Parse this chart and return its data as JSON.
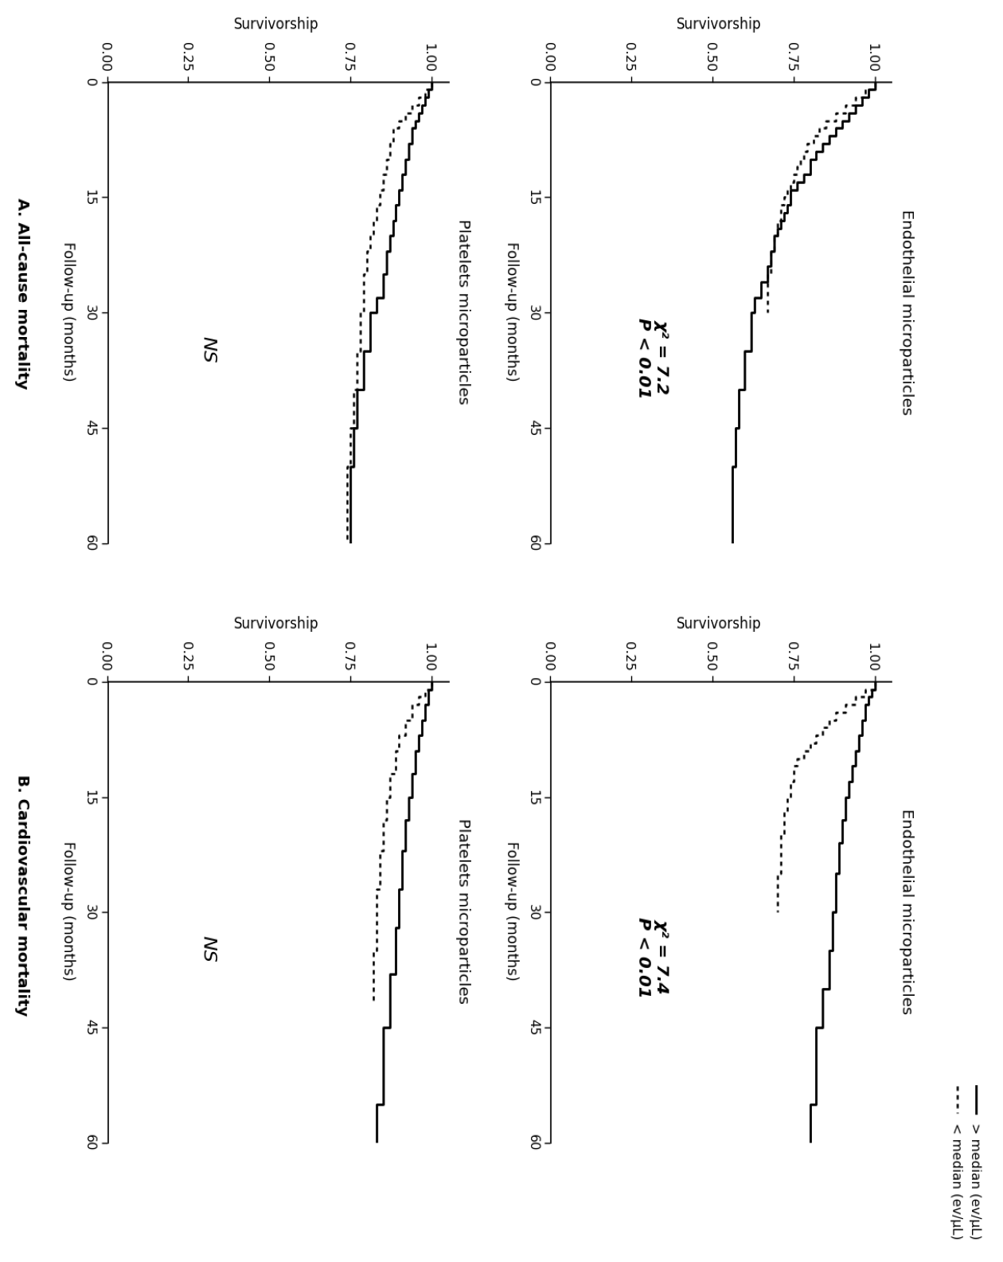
{
  "fig_width": 12.4,
  "fig_height": 15.64,
  "background_color": "#ffffff",
  "panel_A_label": "A. All-cause mortality",
  "panel_B_label": "B. Cardiovascular mortality",
  "ylabel": "Survivorship",
  "xlabel": "Follow-up (months)",
  "legend_solid": "> median (ev/μL)",
  "legend_dotted": "< median (ev/μL)",
  "subplots": [
    {
      "title": "Endothelial microparticles",
      "annotation": "χ² = 7.2\nP < 0.01",
      "annotation_bold": true,
      "xlim": [
        0,
        60
      ],
      "ylim": [
        0.0,
        1.05
      ],
      "xticks": [
        0,
        15,
        30,
        45,
        60
      ],
      "yticks": [
        0.0,
        0.25,
        0.5,
        0.75,
        1.0
      ],
      "solid_x": [
        0,
        1,
        1,
        2,
        2,
        3,
        3,
        4,
        4,
        5,
        5,
        6,
        6,
        7,
        7,
        8,
        8,
        9,
        9,
        10,
        10,
        12,
        12,
        13,
        13,
        14,
        14,
        16,
        16,
        17,
        17,
        18,
        18,
        19,
        19,
        20,
        20,
        22,
        22,
        24,
        24,
        26,
        26,
        28,
        28,
        30,
        30,
        35,
        35,
        40,
        40,
        45,
        45,
        50,
        50,
        60
      ],
      "solid_y": [
        1.0,
        1.0,
        0.98,
        0.98,
        0.96,
        0.96,
        0.94,
        0.94,
        0.92,
        0.92,
        0.9,
        0.9,
        0.88,
        0.88,
        0.86,
        0.86,
        0.84,
        0.84,
        0.82,
        0.82,
        0.8,
        0.8,
        0.78,
        0.78,
        0.76,
        0.76,
        0.74,
        0.74,
        0.73,
        0.73,
        0.72,
        0.72,
        0.71,
        0.71,
        0.7,
        0.7,
        0.69,
        0.69,
        0.68,
        0.68,
        0.67,
        0.67,
        0.65,
        0.65,
        0.63,
        0.63,
        0.62,
        0.62,
        0.6,
        0.6,
        0.58,
        0.58,
        0.57,
        0.57,
        0.56,
        0.56
      ],
      "dotted_x": [
        0,
        1,
        1,
        2,
        2,
        3,
        3,
        4,
        4,
        5,
        5,
        6,
        6,
        7,
        7,
        8,
        8,
        9,
        9,
        10,
        10,
        11,
        11,
        12,
        12,
        13,
        13,
        14,
        14,
        15,
        15,
        16,
        16,
        18,
        18,
        20,
        20,
        22,
        22,
        25,
        25,
        30
      ],
      "dotted_y": [
        1.0,
        1.0,
        0.97,
        0.97,
        0.94,
        0.94,
        0.91,
        0.91,
        0.88,
        0.88,
        0.85,
        0.85,
        0.83,
        0.83,
        0.81,
        0.81,
        0.79,
        0.79,
        0.78,
        0.78,
        0.77,
        0.77,
        0.76,
        0.76,
        0.75,
        0.75,
        0.74,
        0.74,
        0.73,
        0.73,
        0.72,
        0.72,
        0.71,
        0.71,
        0.7,
        0.7,
        0.69,
        0.69,
        0.68,
        0.68,
        0.67,
        0.67
      ]
    },
    {
      "title": "Platelets microparticles",
      "annotation": "NS",
      "annotation_bold": false,
      "xlim": [
        0,
        60
      ],
      "ylim": [
        0.0,
        1.05
      ],
      "xticks": [
        0,
        15,
        30,
        45,
        60
      ],
      "yticks": [
        0.0,
        0.25,
        0.5,
        0.75,
        1.0
      ],
      "solid_x": [
        0,
        1,
        1,
        2,
        2,
        3,
        3,
        4,
        4,
        5,
        5,
        6,
        6,
        8,
        8,
        10,
        10,
        12,
        12,
        14,
        14,
        16,
        16,
        18,
        18,
        20,
        20,
        22,
        22,
        25,
        25,
        28,
        28,
        30,
        30,
        35,
        35,
        40,
        40,
        45,
        45,
        50,
        50,
        60
      ],
      "solid_y": [
        1.0,
        1.0,
        0.99,
        0.99,
        0.98,
        0.98,
        0.97,
        0.97,
        0.96,
        0.96,
        0.95,
        0.95,
        0.94,
        0.94,
        0.93,
        0.93,
        0.92,
        0.92,
        0.91,
        0.91,
        0.9,
        0.9,
        0.89,
        0.89,
        0.88,
        0.88,
        0.87,
        0.87,
        0.86,
        0.86,
        0.85,
        0.85,
        0.83,
        0.83,
        0.81,
        0.81,
        0.79,
        0.79,
        0.77,
        0.77,
        0.76,
        0.76,
        0.75,
        0.75
      ],
      "dotted_x": [
        0,
        1,
        1,
        2,
        2,
        3,
        3,
        4,
        4,
        5,
        5,
        6,
        6,
        8,
        8,
        10,
        10,
        12,
        12,
        14,
        14,
        16,
        16,
        18,
        18,
        20,
        20,
        22,
        22,
        25,
        25,
        30,
        30,
        35,
        35,
        40,
        40,
        45,
        45,
        50,
        50,
        60
      ],
      "dotted_y": [
        1.0,
        1.0,
        0.98,
        0.98,
        0.96,
        0.96,
        0.94,
        0.94,
        0.92,
        0.92,
        0.9,
        0.9,
        0.88,
        0.88,
        0.87,
        0.87,
        0.86,
        0.86,
        0.85,
        0.85,
        0.84,
        0.84,
        0.83,
        0.83,
        0.82,
        0.82,
        0.81,
        0.81,
        0.8,
        0.8,
        0.79,
        0.79,
        0.78,
        0.78,
        0.77,
        0.77,
        0.76,
        0.76,
        0.75,
        0.75,
        0.74,
        0.74
      ]
    },
    {
      "title": "Endothelial microparticles",
      "annotation": "χ² = 7.4\nP < 0.01",
      "annotation_bold": true,
      "xlim": [
        0,
        60
      ],
      "ylim": [
        0.0,
        1.05
      ],
      "xticks": [
        0,
        15,
        30,
        45,
        60
      ],
      "yticks": [
        0.0,
        0.25,
        0.5,
        0.75,
        1.0
      ],
      "solid_x": [
        0,
        1,
        1,
        2,
        2,
        3,
        3,
        5,
        5,
        7,
        7,
        9,
        9,
        11,
        11,
        13,
        13,
        15,
        15,
        18,
        18,
        21,
        21,
        25,
        25,
        30,
        30,
        35,
        35,
        40,
        40,
        45,
        45,
        55,
        55,
        60
      ],
      "solid_y": [
        1.0,
        1.0,
        0.99,
        0.99,
        0.98,
        0.98,
        0.97,
        0.97,
        0.96,
        0.96,
        0.95,
        0.95,
        0.94,
        0.94,
        0.93,
        0.93,
        0.92,
        0.92,
        0.91,
        0.91,
        0.9,
        0.9,
        0.89,
        0.89,
        0.88,
        0.88,
        0.87,
        0.87,
        0.86,
        0.86,
        0.84,
        0.84,
        0.82,
        0.82,
        0.8,
        0.8
      ],
      "dotted_x": [
        0,
        1,
        1,
        2,
        2,
        3,
        3,
        4,
        4,
        5,
        5,
        6,
        6,
        7,
        7,
        8,
        8,
        9,
        9,
        10,
        10,
        11,
        11,
        13,
        13,
        15,
        15,
        17,
        17,
        20,
        20,
        25,
        25,
        30
      ],
      "dotted_y": [
        1.0,
        1.0,
        0.97,
        0.97,
        0.94,
        0.94,
        0.91,
        0.91,
        0.88,
        0.88,
        0.86,
        0.86,
        0.84,
        0.84,
        0.82,
        0.82,
        0.8,
        0.8,
        0.78,
        0.78,
        0.76,
        0.76,
        0.75,
        0.75,
        0.74,
        0.74,
        0.73,
        0.73,
        0.72,
        0.72,
        0.71,
        0.71,
        0.7,
        0.7
      ]
    },
    {
      "title": "Platelets microparticles",
      "annotation": "NS",
      "annotation_bold": false,
      "xlim": [
        0,
        60
      ],
      "ylim": [
        0.0,
        1.05
      ],
      "xticks": [
        0,
        15,
        30,
        45,
        60
      ],
      "yticks": [
        0.0,
        0.25,
        0.5,
        0.75,
        1.0
      ],
      "solid_x": [
        0,
        1,
        1,
        3,
        3,
        5,
        5,
        7,
        7,
        9,
        9,
        12,
        12,
        15,
        15,
        18,
        18,
        22,
        22,
        27,
        27,
        32,
        32,
        38,
        38,
        45,
        45,
        55,
        55,
        60
      ],
      "solid_y": [
        1.0,
        1.0,
        0.99,
        0.99,
        0.98,
        0.98,
        0.97,
        0.97,
        0.96,
        0.96,
        0.95,
        0.95,
        0.94,
        0.94,
        0.93,
        0.93,
        0.92,
        0.92,
        0.91,
        0.91,
        0.9,
        0.9,
        0.89,
        0.89,
        0.87,
        0.87,
        0.85,
        0.85,
        0.83,
        0.83
      ],
      "dotted_x": [
        0,
        1,
        1,
        2,
        2,
        3,
        3,
        5,
        5,
        7,
        7,
        9,
        9,
        12,
        12,
        15,
        15,
        18,
        18,
        22,
        22,
        27,
        27,
        35,
        35,
        42
      ],
      "dotted_y": [
        1.0,
        1.0,
        0.98,
        0.98,
        0.96,
        0.96,
        0.94,
        0.94,
        0.92,
        0.92,
        0.9,
        0.9,
        0.89,
        0.89,
        0.87,
        0.87,
        0.86,
        0.86,
        0.85,
        0.85,
        0.84,
        0.84,
        0.83,
        0.83,
        0.82,
        0.82
      ]
    }
  ]
}
